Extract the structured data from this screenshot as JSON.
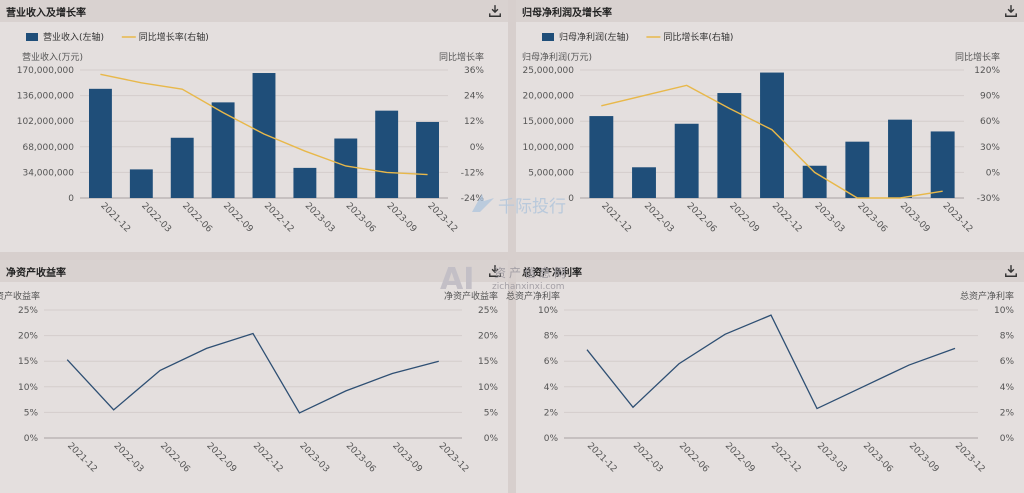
{
  "panels": [
    {
      "title": "营业收入及增长率",
      "download_icon": "download-icon",
      "chart_data": {
        "type": "bar",
        "categories": [
          "2021-12",
          "2022-03",
          "2022-06",
          "2022-09",
          "2022-12",
          "2023-03",
          "2023-06",
          "2023-09",
          "2023-12"
        ],
        "series": [
          {
            "name": "营业收入(左轴)",
            "type": "bar",
            "axis": "left",
            "color": "#1f4e79",
            "values": [
              145000000,
              38000000,
              80000000,
              127000000,
              166000000,
              40000000,
              79000000,
              116000000,
              101000000
            ]
          },
          {
            "name": "同比增长率(右轴)",
            "type": "line",
            "axis": "right",
            "color": "#e8b84a",
            "values": [
              34,
              30,
              27,
              16,
              6,
              -2,
              -9,
              -12,
              -13
            ]
          }
        ],
        "ylabel_left": "营业收入(万元)",
        "ylabel_right": "同比增长率",
        "yticks_left": [
          "0",
          "34,000,000",
          "68,000,000",
          "102,000,000",
          "136,000,000",
          "170,000,000"
        ],
        "yticks_right": [
          "-24%",
          "-12%",
          "0%",
          "12%",
          "24%",
          "36%"
        ],
        "ylim_left": [
          0,
          170000000
        ],
        "ylim_right": [
          -24,
          36
        ]
      }
    },
    {
      "title": "归母净利润及增长率",
      "download_icon": "download-icon",
      "chart_data": {
        "type": "bar",
        "categories": [
          "2021-12",
          "2022-03",
          "2022-06",
          "2022-09",
          "2022-12",
          "2023-03",
          "2023-06",
          "2023-09",
          "2023-12"
        ],
        "series": [
          {
            "name": "归母净利润(左轴)",
            "type": "bar",
            "axis": "left",
            "color": "#1f4e79",
            "values": [
              16000000,
              6000000,
              14500000,
              20500000,
              24500000,
              6300000,
              11000000,
              15300000,
              13000000
            ]
          },
          {
            "name": "同比增长率(右轴)",
            "type": "line",
            "axis": "right",
            "color": "#e8b84a",
            "values": [
              78,
              90,
              102,
              75,
              50,
              0,
              -30,
              -30,
              -22
            ]
          }
        ],
        "ylabel_left": "归母净利润(万元)",
        "ylabel_right": "同比增长率",
        "yticks_left": [
          "0",
          "5,000,000",
          "10,000,000",
          "15,000,000",
          "20,000,000",
          "25,000,000"
        ],
        "yticks_right": [
          "-30%",
          "0%",
          "30%",
          "60%",
          "90%",
          "120%"
        ],
        "ylim_left": [
          0,
          25000000
        ],
        "ylim_right": [
          -30,
          120
        ]
      }
    },
    {
      "title": "净资产收益率",
      "download_icon": "download-icon",
      "chart_data": {
        "type": "line",
        "categories": [
          "2021-12",
          "2022-03",
          "2022-06",
          "2022-09",
          "2022-12",
          "2023-03",
          "2023-06",
          "2023-09",
          "2023-12"
        ],
        "series": [
          {
            "name": "",
            "type": "line",
            "axis": "left",
            "color": "#2e4f73",
            "values": [
              15.3,
              5.5,
              13.2,
              17.5,
              20.4,
              4.9,
              9.2,
              12.6,
              15.0
            ]
          }
        ],
        "ylabel_left": "净资产收益率",
        "ylabel_right": "净资产收益率",
        "yticks_left": [
          "0%",
          "5%",
          "10%",
          "15%",
          "20%",
          "25%"
        ],
        "yticks_right": [
          "0%",
          "5%",
          "10%",
          "15%",
          "20%",
          "25%"
        ],
        "ylim_left": [
          0,
          25
        ],
        "ylim_right": [
          0,
          25
        ]
      }
    },
    {
      "title": "总资产净利率",
      "download_icon": "download-icon",
      "chart_data": {
        "type": "line",
        "categories": [
          "2021-12",
          "2022-03",
          "2022-06",
          "2022-09",
          "2022-12",
          "2023-03",
          "2023-06",
          "2023-09",
          "2023-12"
        ],
        "series": [
          {
            "name": "",
            "type": "line",
            "axis": "left",
            "color": "#2e4f73",
            "values": [
              6.9,
              2.4,
              5.8,
              8.1,
              9.6,
              2.3,
              4.0,
              5.7,
              7.0
            ]
          }
        ],
        "ylabel_left": "总资产净利率",
        "ylabel_right": "总资产净利率",
        "yticks_left": [
          "0%",
          "2%",
          "4%",
          "6%",
          "8%",
          "10%"
        ],
        "yticks_right": [
          "0%",
          "2%",
          "4%",
          "6%",
          "8%",
          "10%"
        ],
        "ylim_left": [
          0,
          10
        ],
        "ylim_right": [
          0,
          10
        ]
      }
    }
  ],
  "watermarks": {
    "brand1": "千际投行",
    "brand2_logo": "AI",
    "brand2_text": "资产信息网",
    "brand2_url": "zichanxinxi.com"
  }
}
